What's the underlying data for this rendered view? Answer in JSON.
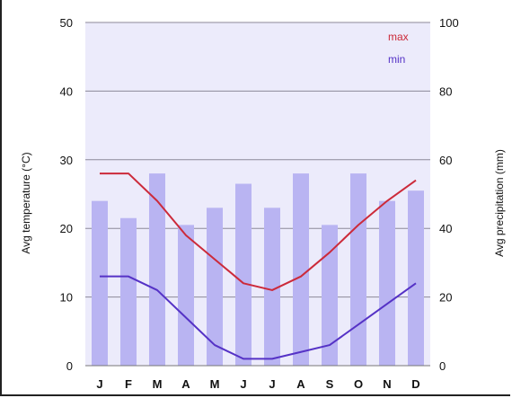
{
  "chart_data": {
    "type": "bar+line",
    "categories": [
      "J",
      "F",
      "M",
      "A",
      "M",
      "J",
      "J",
      "A",
      "S",
      "O",
      "N",
      "D"
    ],
    "bars": {
      "axis": "right",
      "color": "#b9b4f2",
      "values": [
        48,
        43,
        56,
        41,
        46,
        53,
        46,
        56,
        41,
        56,
        48,
        51
      ]
    },
    "series": [
      {
        "name": "max",
        "color": "#cc2a3a",
        "axis": "left",
        "values": [
          28,
          28,
          24,
          19,
          15.5,
          12,
          11,
          13,
          16.5,
          20.5,
          24,
          27
        ]
      },
      {
        "name": "min",
        "color": "#5532c6",
        "axis": "left",
        "values": [
          13,
          13,
          11,
          7,
          3,
          1,
          1,
          2,
          3,
          6,
          9,
          12
        ]
      }
    ],
    "ylabel": "Avg temperature (°C)",
    "y2label": "Avg precipitation (mm)",
    "ylim": [
      0,
      50
    ],
    "y2lim": [
      0,
      100
    ],
    "yticks": [
      "0",
      "10",
      "20",
      "30",
      "40",
      "50"
    ],
    "y2ticks": [
      "0",
      "20",
      "40",
      "60",
      "80",
      "100"
    ],
    "plot_background": "#ecebfb",
    "grid": "horizontal",
    "legend_position": "top-right"
  }
}
